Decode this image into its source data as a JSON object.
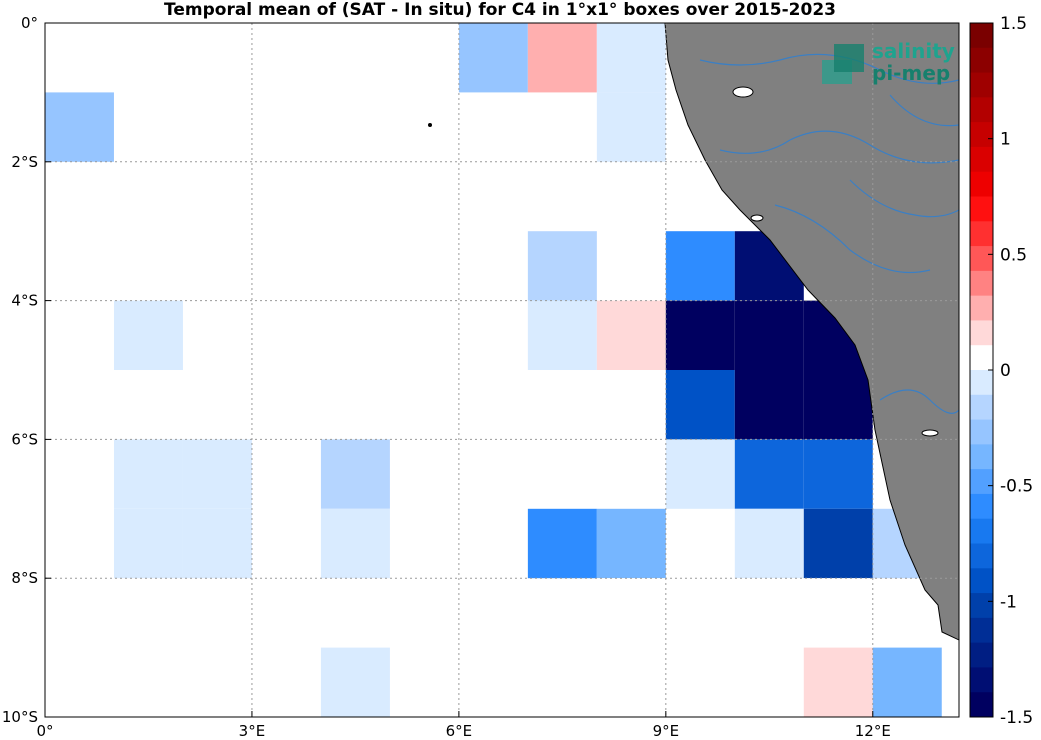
{
  "title": "Temporal mean of (SAT - In situ) for C4 in 1°x1° boxes over 2015-2023",
  "logo": {
    "line1": "salinity",
    "line2": "pi-mep"
  },
  "colors": {
    "land": "#808080",
    "river": "#3b7fc4",
    "grid": "#9a9a9a",
    "white": "#ffffff"
  },
  "chart_data": {
    "type": "heatmap",
    "xlim": [
      0,
      13.25
    ],
    "ylim": [
      -10,
      0
    ],
    "x_ticks": [
      {
        "value": 0,
        "label": "0°"
      },
      {
        "value": 3,
        "label": "3°E"
      },
      {
        "value": 6,
        "label": "6°E"
      },
      {
        "value": 9,
        "label": "9°E"
      },
      {
        "value": 12,
        "label": "12°E"
      }
    ],
    "y_ticks": [
      {
        "value": 0,
        "label": "0°"
      },
      {
        "value": -2,
        "label": "2°S"
      },
      {
        "value": -4,
        "label": "4°S"
      },
      {
        "value": -6,
        "label": "6°S"
      },
      {
        "value": -8,
        "label": "8°S"
      },
      {
        "value": -10,
        "label": "10°S"
      }
    ],
    "colorbar": {
      "range": [
        -1.5,
        1.5
      ],
      "ticks": [
        "1.5",
        "1",
        "0.5",
        "0",
        "-0.5",
        "-1",
        "-1.5"
      ],
      "colors": [
        "#7a0000",
        "#8c0000",
        "#9f0000",
        "#b30000",
        "#c60000",
        "#da0000",
        "#ee0000",
        "#ff1010",
        "#ff3030",
        "#ff5757",
        "#ff8282",
        "#ffafaf",
        "#ffd9d9",
        "#ffffff",
        "#d9ebff",
        "#b5d5ff",
        "#96c5ff",
        "#76b6ff",
        "#52a0ff",
        "#2e8cff",
        "#1879f0",
        "#0d66dc",
        "#0052c6",
        "#0040aa",
        "#002e96",
        "#001e83",
        "#000e73",
        "#000060"
      ]
    },
    "cells": [
      {
        "lon": 0.5,
        "lat": -0.5,
        "value": 0.1
      },
      {
        "lon": 4.5,
        "lat": -0.5,
        "value": 0.1
      },
      {
        "lon": 6.5,
        "lat": -0.5,
        "value": -0.25
      },
      {
        "lon": 7.5,
        "lat": -0.5,
        "value": 0.3
      },
      {
        "lon": 8.5,
        "lat": -0.5,
        "value": -0.1
      },
      {
        "lon": 0.5,
        "lat": -1.5,
        "value": -0.25
      },
      {
        "lon": 1.5,
        "lat": -1.5,
        "value": 0.1
      },
      {
        "lon": 2.5,
        "lat": -1.5,
        "value": 0.1
      },
      {
        "lon": 4.5,
        "lat": -1.5,
        "value": 0.1
      },
      {
        "lon": 8.5,
        "lat": -1.5,
        "value": -0.1
      },
      {
        "lon": 2.5,
        "lat": -2.5,
        "value": 0.1
      },
      {
        "lon": 4.5,
        "lat": -2.5,
        "value": 0.1
      },
      {
        "lon": 6.5,
        "lat": -2.5,
        "value": 0.1
      },
      {
        "lon": 0.5,
        "lat": -3.5,
        "value": 0.1
      },
      {
        "lon": 2.5,
        "lat": -3.5,
        "value": 0.1
      },
      {
        "lon": 4.5,
        "lat": -3.5,
        "value": 0.1
      },
      {
        "lon": 5.5,
        "lat": -3.5,
        "value": 0.1
      },
      {
        "lon": 7.5,
        "lat": -3.5,
        "value": -0.2
      },
      {
        "lon": 9.5,
        "lat": -3.5,
        "value": -0.6
      },
      {
        "lon": 10.5,
        "lat": -3.5,
        "value": -1.35
      },
      {
        "lon": 1.5,
        "lat": -4.5,
        "value": -0.1
      },
      {
        "lon": 5.5,
        "lat": -4.5,
        "value": 0.1
      },
      {
        "lon": 6.5,
        "lat": -4.5,
        "value": 0.1
      },
      {
        "lon": 7.5,
        "lat": -4.5,
        "value": -0.1
      },
      {
        "lon": 8.5,
        "lat": -4.5,
        "value": 0.2
      },
      {
        "lon": 9.5,
        "lat": -4.5,
        "value": -1.5
      },
      {
        "lon": 10.5,
        "lat": -4.5,
        "value": -1.5
      },
      {
        "lon": 11.5,
        "lat": -4.5,
        "value": -1.5
      },
      {
        "lon": 5.5,
        "lat": -5.5,
        "value": 0.1
      },
      {
        "lon": 9.5,
        "lat": -5.5,
        "value": -0.9
      },
      {
        "lon": 10.5,
        "lat": -5.5,
        "value": -1.5
      },
      {
        "lon": 11.5,
        "lat": -5.5,
        "value": -1.5
      },
      {
        "lon": 1.5,
        "lat": -6.5,
        "value": -0.1
      },
      {
        "lon": 2.5,
        "lat": -6.5,
        "value": -0.1
      },
      {
        "lon": 4.5,
        "lat": -6.5,
        "value": -0.2
      },
      {
        "lon": 9.5,
        "lat": -6.5,
        "value": -0.1
      },
      {
        "lon": 10.5,
        "lat": -6.5,
        "value": -0.75
      },
      {
        "lon": 11.5,
        "lat": -6.5,
        "value": -0.75
      },
      {
        "lon": 1.5,
        "lat": -7.5,
        "value": -0.1
      },
      {
        "lon": 2.5,
        "lat": -7.5,
        "value": -0.1
      },
      {
        "lon": 4.5,
        "lat": -7.5,
        "value": -0.1
      },
      {
        "lon": 7.5,
        "lat": -7.5,
        "value": -0.6
      },
      {
        "lon": 8.5,
        "lat": -7.5,
        "value": -0.35
      },
      {
        "lon": 10.5,
        "lat": -7.5,
        "value": -0.1
      },
      {
        "lon": 11.5,
        "lat": -7.5,
        "value": -1.0
      },
      {
        "lon": 12.5,
        "lat": -7.5,
        "value": -0.2
      },
      {
        "lon": 8.5,
        "lat": -8.5,
        "value": 0.1
      },
      {
        "lon": 9.5,
        "lat": -8.5,
        "value": 0.1
      },
      {
        "lon": 10.5,
        "lat": -8.5,
        "value": 0.1
      },
      {
        "lon": 11.5,
        "lat": -8.5,
        "value": 0.1
      },
      {
        "lon": 4.5,
        "lat": -9.5,
        "value": -0.1
      },
      {
        "lon": 11.5,
        "lat": -9.5,
        "value": 0.2
      },
      {
        "lon": 12.5,
        "lat": -9.5,
        "value": -0.4
      }
    ]
  }
}
